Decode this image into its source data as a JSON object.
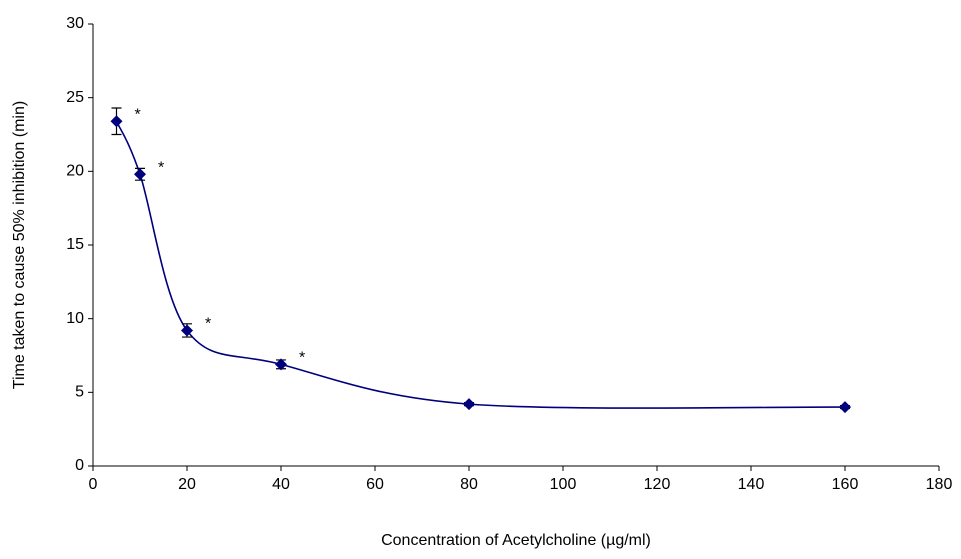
{
  "chart_data": {
    "type": "line",
    "x_label": "Concentration of Acetylcholine (µg/ml)",
    "y_label": "Time taken to cause 50% inhibition (min)",
    "smooth": true,
    "series": [
      {
        "color": "#00007f",
        "x": [
          5,
          10,
          20,
          40,
          80,
          160
        ],
        "values": [
          23.4,
          19.8,
          9.2,
          6.9,
          4.2,
          4.0
        ],
        "errors": [
          0.9,
          0.4,
          0.45,
          0.3,
          0.1,
          0.1
        ],
        "significance_marks": [
          "*",
          "*",
          "*",
          "*",
          null,
          null
        ]
      }
    ],
    "xlim": [
      0,
      180
    ],
    "xticks": [
      0,
      20,
      40,
      60,
      80,
      100,
      120,
      140,
      160,
      180
    ],
    "ylim": [
      0,
      30
    ],
    "yticks": [
      0,
      5,
      10,
      15,
      20,
      25,
      30
    ]
  }
}
